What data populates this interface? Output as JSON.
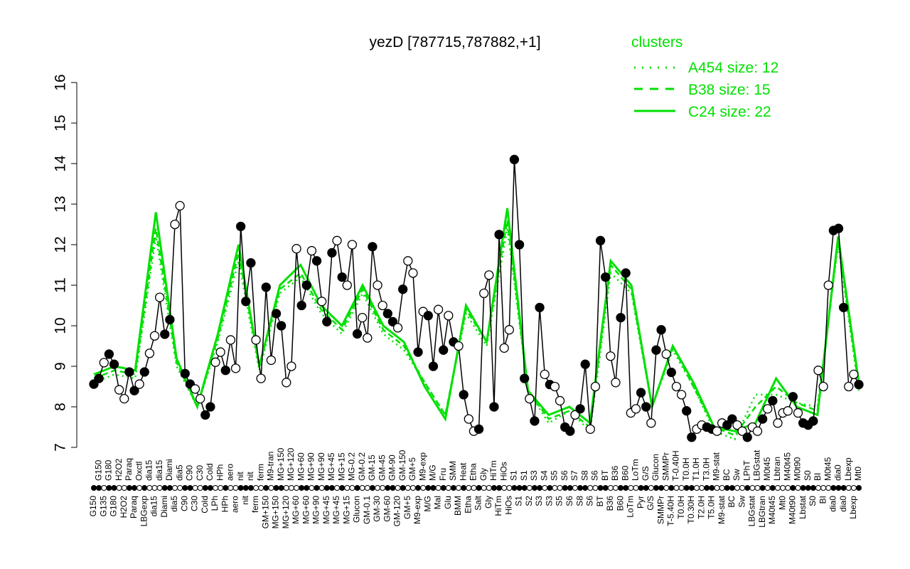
{
  "chart_data": {
    "type": "line",
    "title": "yezD [787715,787882,+1]",
    "xlabel": "",
    "ylabel": "",
    "ylim": [
      7,
      16
    ],
    "yticks": [
      7,
      8,
      9,
      10,
      11,
      12,
      13,
      14,
      15,
      16
    ],
    "grid": false,
    "legend": {
      "title": "clusters",
      "placement": "top-right",
      "color": "#00e000",
      "entries": [
        {
          "label": "A454 size: 12",
          "style": "dotted"
        },
        {
          "label": "B38 size: 15",
          "style": "dashed"
        },
        {
          "label": "C24 size: 22",
          "style": "solid"
        }
      ]
    },
    "points": [
      [
        "G150",
        8.56,
        1
      ],
      [
        "G150",
        8.7,
        1
      ],
      [
        "G135",
        9.09,
        0
      ],
      [
        "G180",
        9.3,
        1
      ],
      [
        "G180",
        9.05,
        1
      ],
      [
        "H2O2",
        8.42,
        0
      ],
      [
        "H2O2",
        8.2,
        0
      ],
      [
        "Paraq",
        8.86,
        1
      ],
      [
        "Paraq",
        8.4,
        1
      ],
      [
        "Oxctl",
        8.56,
        0
      ],
      [
        "LBGexp",
        8.86,
        1
      ],
      [
        "dia15",
        9.32,
        0
      ],
      [
        "dia15",
        9.75,
        0
      ],
      [
        "dia15",
        10.7,
        0
      ],
      [
        "Diami",
        9.79,
        1
      ],
      [
        "Diami",
        10.15,
        1
      ],
      [
        "dia5",
        12.5,
        0
      ],
      [
        "dia5",
        12.96,
        0
      ],
      [
        "C90",
        8.82,
        1
      ],
      [
        "C90",
        8.56,
        1
      ],
      [
        "C30",
        8.44,
        0
      ],
      [
        "C30",
        8.2,
        0
      ],
      [
        "Cold",
        7.8,
        1
      ],
      [
        "Cold",
        8.0,
        1
      ],
      [
        "LPh",
        9.1,
        0
      ],
      [
        "HPh",
        9.35,
        0
      ],
      [
        "HPh",
        8.9,
        1
      ],
      [
        "aero",
        9.65,
        0
      ],
      [
        "aero",
        8.95,
        0
      ],
      [
        "nit",
        12.45,
        1
      ],
      [
        "nit",
        10.6,
        1
      ],
      [
        "nit",
        11.55,
        1
      ],
      [
        "ferm",
        9.65,
        0
      ],
      [
        "ferm",
        8.7,
        0
      ],
      [
        "GM+150",
        10.95,
        1
      ],
      [
        "M9-tran",
        9.15,
        0
      ],
      [
        "MG+150",
        10.3,
        1
      ],
      [
        "MG+150",
        10.0,
        1
      ],
      [
        "MG+120",
        8.6,
        0
      ],
      [
        "MG+120",
        9.0,
        0
      ],
      [
        "MG+60",
        11.9,
        0
      ],
      [
        "MG+60",
        10.5,
        1
      ],
      [
        "MG+60",
        11.0,
        1
      ],
      [
        "MG+90",
        11.85,
        0
      ],
      [
        "MG+90",
        11.6,
        1
      ],
      [
        "MG+90",
        10.6,
        0
      ],
      [
        "MG+45",
        10.1,
        1
      ],
      [
        "MG+45",
        11.8,
        1
      ],
      [
        "MG+45",
        12.1,
        0
      ],
      [
        "MG+15",
        11.2,
        1
      ],
      [
        "MG+15",
        11.0,
        0
      ],
      [
        "MG-0.2",
        12.0,
        0
      ],
      [
        "Glucon",
        9.8,
        1
      ],
      [
        "GM-0.2",
        10.2,
        0
      ],
      [
        "GM-0.1",
        9.7,
        0
      ],
      [
        "GM-15",
        11.95,
        1
      ],
      [
        "GM-30",
        11.0,
        0
      ],
      [
        "GM-45",
        10.5,
        0
      ],
      [
        "GM-60",
        10.3,
        1
      ],
      [
        "GM-90",
        10.1,
        1
      ],
      [
        "GM-120",
        9.95,
        0
      ],
      [
        "GM-150",
        10.9,
        1
      ],
      [
        "GM+5",
        11.6,
        0
      ],
      [
        "GM+5",
        11.3,
        0
      ],
      [
        "M9-exp",
        9.35,
        1
      ],
      [
        "M9-exp",
        10.35,
        0
      ],
      [
        "M/G",
        10.25,
        1
      ],
      [
        "M/G",
        9.0,
        1
      ],
      [
        "Mal",
        10.4,
        0
      ],
      [
        "Fru",
        9.4,
        1
      ],
      [
        "Glu",
        10.25,
        0
      ],
      [
        "SMM",
        9.6,
        1
      ],
      [
        "BMM",
        9.5,
        0
      ],
      [
        "Heat",
        8.3,
        1
      ],
      [
        "Etha",
        7.7,
        0
      ],
      [
        "Etha",
        7.4,
        0
      ],
      [
        "Salt",
        7.45,
        1
      ],
      [
        "Gly",
        10.8,
        0
      ],
      [
        "Gly",
        11.25,
        0
      ],
      [
        "HiTm",
        8.0,
        1
      ],
      [
        "HiTm",
        12.25,
        1
      ],
      [
        "HiOs",
        9.45,
        0
      ],
      [
        "HiOs",
        9.9,
        0
      ],
      [
        "S1",
        14.1,
        1
      ],
      [
        "S1",
        12.0,
        1
      ],
      [
        "S1",
        8.7,
        1
      ],
      [
        "S2",
        8.2,
        0
      ],
      [
        "S3",
        7.65,
        1
      ],
      [
        "S3",
        10.45,
        1
      ],
      [
        "S4",
        8.8,
        0
      ],
      [
        "S3",
        8.55,
        1
      ],
      [
        "S5",
        8.5,
        0
      ],
      [
        "S5",
        8.15,
        0
      ],
      [
        "S6",
        7.5,
        1
      ],
      [
        "S6",
        7.4,
        1
      ],
      [
        "S7",
        7.8,
        0
      ],
      [
        "S8",
        7.95,
        1
      ],
      [
        "S8",
        9.05,
        1
      ],
      [
        "S6",
        7.45,
        0
      ],
      [
        "S6",
        8.5,
        0
      ],
      [
        "BT",
        12.1,
        1
      ],
      [
        "BT",
        11.2,
        1
      ],
      [
        "B36",
        9.25,
        0
      ],
      [
        "B36",
        8.6,
        0
      ],
      [
        "B60",
        10.2,
        1
      ],
      [
        "B60",
        11.3,
        1
      ],
      [
        "LoTm",
        7.85,
        0
      ],
      [
        "LoTm",
        7.95,
        0
      ],
      [
        "Pyr",
        8.35,
        1
      ],
      [
        "G/S",
        8.0,
        1
      ],
      [
        "G/S",
        7.6,
        0
      ],
      [
        "Glucon",
        9.4,
        1
      ],
      [
        "SMMPr",
        9.9,
        1
      ],
      [
        "SMMPr",
        9.3,
        0
      ],
      [
        "T-5.40H",
        8.85,
        1
      ],
      [
        "T-0.40H",
        8.5,
        0
      ],
      [
        "T0.0H",
        8.3,
        0
      ],
      [
        "T0.0H",
        7.9,
        1
      ],
      [
        "T0.30H",
        7.25,
        1
      ],
      [
        "T1.0H",
        7.45,
        0
      ],
      [
        "T2.0H",
        7.55,
        0
      ],
      [
        "T3.0H",
        7.5,
        1
      ],
      [
        "T5.0H",
        7.45,
        1
      ],
      [
        "M9-stat",
        7.4,
        0
      ],
      [
        "M9-stat",
        7.6,
        0
      ],
      [
        "BC",
        7.55,
        1
      ],
      [
        "BC",
        7.7,
        1
      ],
      [
        "Sw",
        7.55,
        0
      ],
      [
        "Sw",
        7.4,
        0
      ],
      [
        "LPhT",
        7.25,
        1
      ],
      [
        "LBGstat",
        7.5,
        0
      ],
      [
        "LBGstat",
        7.4,
        0
      ],
      [
        "LBGtran",
        7.7,
        1
      ],
      [
        "M0t45",
        7.95,
        0
      ],
      [
        "M40t45",
        8.15,
        1
      ],
      [
        "Lbtran",
        7.6,
        0
      ],
      [
        "Mt0",
        7.85,
        0
      ],
      [
        "M40t45",
        7.9,
        0
      ],
      [
        "M40t90",
        8.25,
        1
      ],
      [
        "M0t90",
        7.85,
        0
      ],
      [
        "Lbstat",
        7.6,
        1
      ],
      [
        "S0",
        7.55,
        1
      ],
      [
        "S0",
        7.65,
        1
      ],
      [
        "BI",
        8.9,
        0
      ],
      [
        "BI",
        8.5,
        0
      ],
      [
        "M0t45",
        11.0,
        0
      ],
      [
        "dia0",
        12.35,
        1
      ],
      [
        "dia0",
        12.4,
        1
      ],
      [
        "dia0",
        10.45,
        1
      ],
      [
        "Lbexp",
        8.5,
        0
      ],
      [
        "Lbexp",
        8.8,
        0
      ],
      [
        "Mt0",
        8.55,
        1
      ]
    ],
    "series": [
      {
        "name": "A454 size: 12",
        "style": "dotted",
        "values": [
          8.6,
          8.8,
          8.7,
          12.2,
          9.0,
          8.0,
          9.6,
          11.6,
          8.9,
          10.8,
          11.2,
          10.3,
          9.8,
          10.8,
          9.8,
          9.4,
          8.6,
          7.8,
          10.3,
          9.5,
          12.4,
          8.4,
          7.6,
          7.9,
          7.4,
          11.3,
          10.8,
          8.0,
          9.4,
          8.5,
          7.4,
          7.2,
          8.3,
          8.3,
          8.1,
          8.0,
          12.0,
          8.4
        ]
      },
      {
        "name": "B38 size: 15",
        "style": "dashed",
        "values": [
          8.7,
          8.9,
          8.8,
          12.4,
          9.1,
          8.0,
          9.7,
          11.8,
          9.0,
          10.9,
          11.3,
          10.4,
          9.9,
          10.9,
          9.9,
          9.5,
          8.6,
          7.8,
          10.4,
          9.6,
          12.6,
          8.4,
          7.7,
          7.9,
          7.5,
          11.5,
          10.9,
          8.0,
          9.5,
          8.5,
          7.5,
          7.3,
          8.0,
          8.5,
          8.1,
          7.9,
          12.1,
          8.5
        ]
      },
      {
        "name": "C24 size: 22",
        "style": "solid",
        "values": [
          8.8,
          9.0,
          8.9,
          12.8,
          9.2,
          8.0,
          9.8,
          12.0,
          9.0,
          11.0,
          11.5,
          10.5,
          10.0,
          11.0,
          10.0,
          9.6,
          8.5,
          7.7,
          10.5,
          9.6,
          12.9,
          8.4,
          7.8,
          8.0,
          7.6,
          11.6,
          11.0,
          8.0,
          9.5,
          8.6,
          7.5,
          7.4,
          7.6,
          8.7,
          8.0,
          7.8,
          12.2,
          8.6
        ]
      }
    ]
  }
}
